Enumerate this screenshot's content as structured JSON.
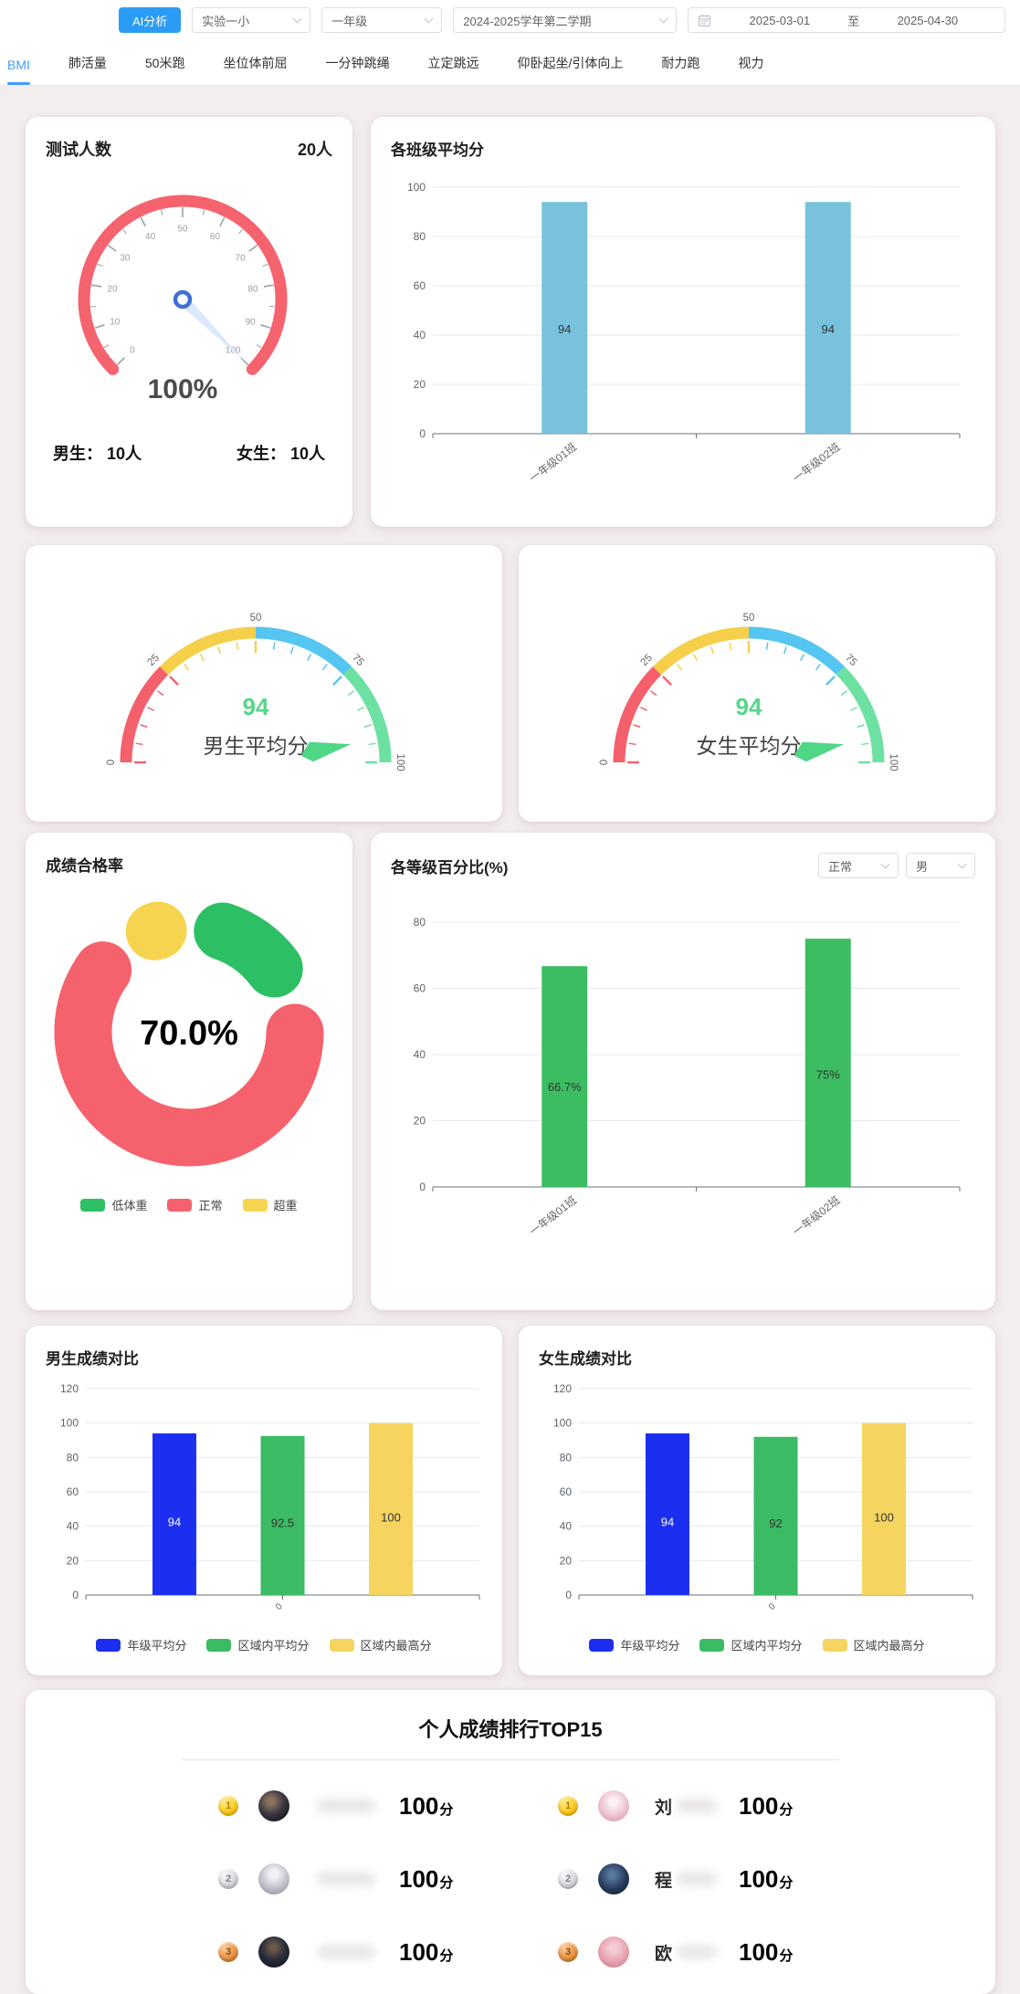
{
  "topbar": {
    "ai_button": "AI分析",
    "school": "实验一小",
    "grade": "一年级",
    "term": "2024-2025学年第二学期",
    "date_start": "2025-03-01",
    "date_sep": "至",
    "date_end": "2025-04-30"
  },
  "tabs": {
    "active": "BMI",
    "items": [
      "BMI",
      "肺活量",
      "50米跑",
      "坐位体前屈",
      "一分钟跳绳",
      "立定跳远",
      "仰卧起坐/引体向上",
      "耐力跑",
      "视力"
    ]
  },
  "colors": {
    "primary": "#409eff",
    "ring_red": "#f5636e",
    "class_bar_blue": "#78c2dc",
    "level_bar_green": "#3cbd62",
    "gauge_segments": [
      "#f4606c",
      "#f6cf4b",
      "#55c6f1",
      "#6ce1a1"
    ],
    "gauge_value_green": "#56d68a"
  },
  "chart_data": [
    {
      "id": "test_count_gauge",
      "type": "gauge",
      "title": "测试人数",
      "total": "20人",
      "value": 100,
      "display": "100%",
      "min": 0,
      "max": 100,
      "tick_step": 10,
      "male": "男生： 10人",
      "female": "女生： 10人",
      "ring_color": "#f5636e"
    },
    {
      "id": "class_avg_bar",
      "type": "bar",
      "title": "各班级平均分",
      "categories": [
        "一年级01班",
        "一年级02班"
      ],
      "values": [
        94,
        94
      ],
      "value_labels": [
        "94",
        "94"
      ],
      "ylim": [
        0,
        100
      ],
      "ytick": 20,
      "bar_color": "#78c2dc",
      "grid": true
    },
    {
      "id": "male_avg_gauge",
      "type": "gauge",
      "title": "男生平均分",
      "value": 94,
      "min": 0,
      "max": 100,
      "axis_ticks": [
        0,
        25,
        50,
        75,
        100
      ],
      "segments": [
        "#f4606c",
        "#f6cf4b",
        "#55c6f1",
        "#6ce1a1"
      ],
      "value_color": "#56d68a"
    },
    {
      "id": "female_avg_gauge",
      "type": "gauge",
      "title": "女生平均分",
      "value": 94,
      "min": 0,
      "max": 100,
      "axis_ticks": [
        0,
        25,
        50,
        75,
        100
      ],
      "segments": [
        "#f4606c",
        "#f6cf4b",
        "#55c6f1",
        "#6ce1a1"
      ],
      "value_color": "#56d68a"
    },
    {
      "id": "pass_rate_donut",
      "type": "pie",
      "title": "成绩合格率",
      "center_text": "70.0%",
      "slices": [
        {
          "name": "低体重",
          "value": 20,
          "color": "#2dbf64"
        },
        {
          "name": "正常",
          "value": 70,
          "color": "#f5626d"
        },
        {
          "name": "超重",
          "value": 10,
          "color": "#f7d44f"
        }
      ],
      "legend_position": "bottom"
    },
    {
      "id": "level_pct_bar",
      "type": "bar",
      "title": "各等级百分比(%)",
      "filters": [
        "正常",
        "男"
      ],
      "categories": [
        "一年级01班",
        "一年级02班"
      ],
      "values": [
        66.7,
        75
      ],
      "value_labels": [
        "66.7%",
        "75%"
      ],
      "ylim": [
        0,
        80
      ],
      "ytick": 20,
      "bar_color": "#3cbd62",
      "grid": true
    },
    {
      "id": "male_compare_bar",
      "type": "bar",
      "title": "男生成绩对比",
      "categories": [
        "0"
      ],
      "series": [
        {
          "name": "年级平均分",
          "value": 94,
          "color": "#1c2ff0"
        },
        {
          "name": "区域内平均分",
          "value": 92.5,
          "color": "#3bbb63"
        },
        {
          "name": "区域内最高分",
          "value": 100,
          "color": "#f5d55f"
        }
      ],
      "value_labels": [
        "94",
        "92.5",
        "100"
      ],
      "ylim": [
        0,
        120
      ],
      "ytick": 20,
      "legend_position": "bottom"
    },
    {
      "id": "female_compare_bar",
      "type": "bar",
      "title": "女生成绩对比",
      "categories": [
        "0"
      ],
      "series": [
        {
          "name": "年级平均分",
          "value": 94,
          "color": "#1c2ff0"
        },
        {
          "name": "区域内平均分",
          "value": 92,
          "color": "#3bbb63"
        },
        {
          "name": "区域内最高分",
          "value": 100,
          "color": "#f5d55f"
        }
      ],
      "value_labels": [
        "94",
        "92",
        "100"
      ],
      "ylim": [
        0,
        120
      ],
      "ytick": 20,
      "legend_position": "bottom"
    }
  ],
  "ranking": {
    "title": "个人成绩排行TOP15",
    "score_unit": "分",
    "entries": [
      {
        "rank": 1,
        "name_visible": "",
        "score": "100",
        "avatar": "boy-dark"
      },
      {
        "rank": 1,
        "name_visible": "刘",
        "score": "100",
        "avatar": "girl-pink"
      },
      {
        "rank": 2,
        "name_visible": "",
        "score": "100",
        "avatar": "boy-silver"
      },
      {
        "rank": 2,
        "name_visible": "程",
        "score": "100",
        "avatar": "boy-navy"
      },
      {
        "rank": 3,
        "name_visible": "",
        "score": "100",
        "avatar": "boy-black"
      },
      {
        "rank": 3,
        "name_visible": "欧",
        "score": "100",
        "avatar": "girl-rose"
      }
    ]
  }
}
